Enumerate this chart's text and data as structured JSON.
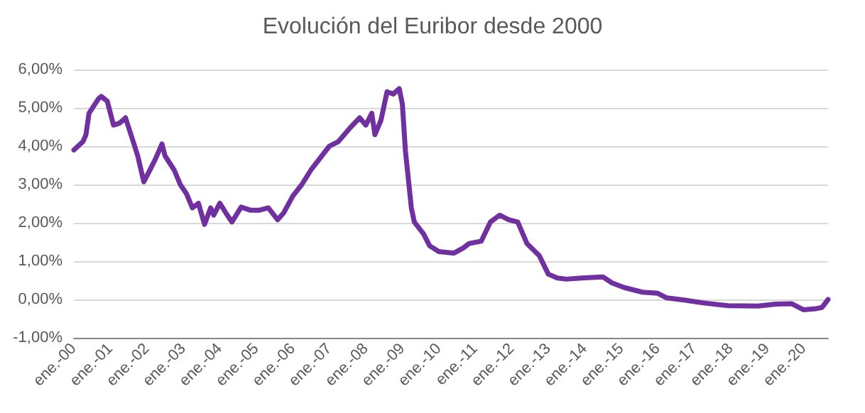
{
  "chart_data": {
    "type": "line",
    "title": "Evolución del Euribor desde 2000",
    "x": [
      "2000-01",
      "2000-04",
      "2000-05",
      "2000-06",
      "2000-09",
      "2000-10",
      "2000-12",
      "2001-02",
      "2001-04",
      "2001-06",
      "2001-08",
      "2001-10",
      "2001-12",
      "2002-02",
      "2002-04",
      "2002-06",
      "2002-07",
      "2002-10",
      "2002-12",
      "2003-02",
      "2003-04",
      "2003-06",
      "2003-08",
      "2003-10",
      "2003-11",
      "2004-01",
      "2004-03",
      "2004-05",
      "2004-08",
      "2004-11",
      "2005-02",
      "2005-05",
      "2005-08",
      "2005-10",
      "2006-01",
      "2006-04",
      "2006-07",
      "2006-10",
      "2007-01",
      "2007-04",
      "2007-08",
      "2007-11",
      "2008-01",
      "2008-03",
      "2008-04",
      "2008-06",
      "2008-08",
      "2008-10",
      "2008-12",
      "2009-01",
      "2009-02",
      "2009-04",
      "2009-05",
      "2009-08",
      "2009-10",
      "2010-01",
      "2010-06",
      "2010-09",
      "2010-11",
      "2011-03",
      "2011-06",
      "2011-09",
      "2011-12",
      "2012-03",
      "2012-06",
      "2012-10",
      "2013-01",
      "2013-04",
      "2013-07",
      "2013-12",
      "2014-07",
      "2014-10",
      "2015-02",
      "2015-08",
      "2016-01",
      "2016-04",
      "2016-10",
      "2017-04",
      "2017-12",
      "2018-10",
      "2019-04",
      "2019-09",
      "2020-01",
      "2020-05",
      "2020-07",
      "2020-09"
    ],
    "series": [
      {
        "color": "#7030a0",
        "values": [
          3.9,
          4.12,
          4.3,
          4.86,
          5.23,
          5.3,
          5.17,
          4.55,
          4.6,
          4.74,
          4.25,
          3.75,
          3.07,
          3.38,
          3.69,
          4.06,
          3.75,
          3.38,
          3.0,
          2.76,
          2.39,
          2.51,
          1.96,
          2.39,
          2.2,
          2.51,
          2.26,
          2.02,
          2.41,
          2.33,
          2.33,
          2.39,
          2.08,
          2.26,
          2.7,
          3.0,
          3.38,
          3.69,
          4.0,
          4.12,
          4.49,
          4.74,
          4.55,
          4.86,
          4.3,
          4.68,
          5.42,
          5.36,
          5.5,
          5.1,
          3.87,
          2.39,
          2.02,
          1.71,
          1.4,
          1.25,
          1.21,
          1.34,
          1.46,
          1.52,
          2.02,
          2.2,
          2.08,
          2.02,
          1.46,
          1.15,
          0.66,
          0.56,
          0.53,
          0.56,
          0.59,
          0.43,
          0.31,
          0.19,
          0.16,
          0.04,
          -0.02,
          -0.09,
          -0.16,
          -0.17,
          -0.12,
          -0.11,
          -0.27,
          -0.24,
          -0.21,
          0.0
        ]
      }
    ],
    "xlim": [
      "2000-01",
      "2020-09"
    ],
    "xticks": [
      {
        "value": "2000-01",
        "label": "ene.-00"
      },
      {
        "value": "2001-01",
        "label": "ene.-01"
      },
      {
        "value": "2002-01",
        "label": "ene.-02"
      },
      {
        "value": "2003-01",
        "label": "ene.-03"
      },
      {
        "value": "2004-01",
        "label": "ene.-04"
      },
      {
        "value": "2005-01",
        "label": "ene.-05"
      },
      {
        "value": "2006-01",
        "label": "ene.-06"
      },
      {
        "value": "2007-01",
        "label": "ene.-07"
      },
      {
        "value": "2008-01",
        "label": "ene.-08"
      },
      {
        "value": "2009-01",
        "label": "ene.-09"
      },
      {
        "value": "2010-01",
        "label": "ene.-10"
      },
      {
        "value": "2011-01",
        "label": "ene.-11"
      },
      {
        "value": "2012-01",
        "label": "ene.-12"
      },
      {
        "value": "2013-01",
        "label": "ene.-13"
      },
      {
        "value": "2014-01",
        "label": "ene.-14"
      },
      {
        "value": "2015-01",
        "label": "ene.-15"
      },
      {
        "value": "2016-01",
        "label": "ene.-16"
      },
      {
        "value": "2017-01",
        "label": "ene.-17"
      },
      {
        "value": "2018-01",
        "label": "ene.-18"
      },
      {
        "value": "2019-01",
        "label": "ene.-19"
      },
      {
        "value": "2020-01",
        "label": "ene.-20"
      }
    ],
    "ylim": [
      -1,
      6
    ],
    "yticks": [
      {
        "value": -1,
        "label": "-1,00%"
      },
      {
        "value": 0,
        "label": "0,00%"
      },
      {
        "value": 1,
        "label": "1,00%"
      },
      {
        "value": 2,
        "label": "2,00%"
      },
      {
        "value": 3,
        "label": "3,00%"
      },
      {
        "value": 4,
        "label": "4,00%"
      },
      {
        "value": 5,
        "label": "5,00%"
      },
      {
        "value": 6,
        "label": "6,00%"
      }
    ],
    "grid": "y",
    "marker": "none",
    "line_style": "solid"
  }
}
